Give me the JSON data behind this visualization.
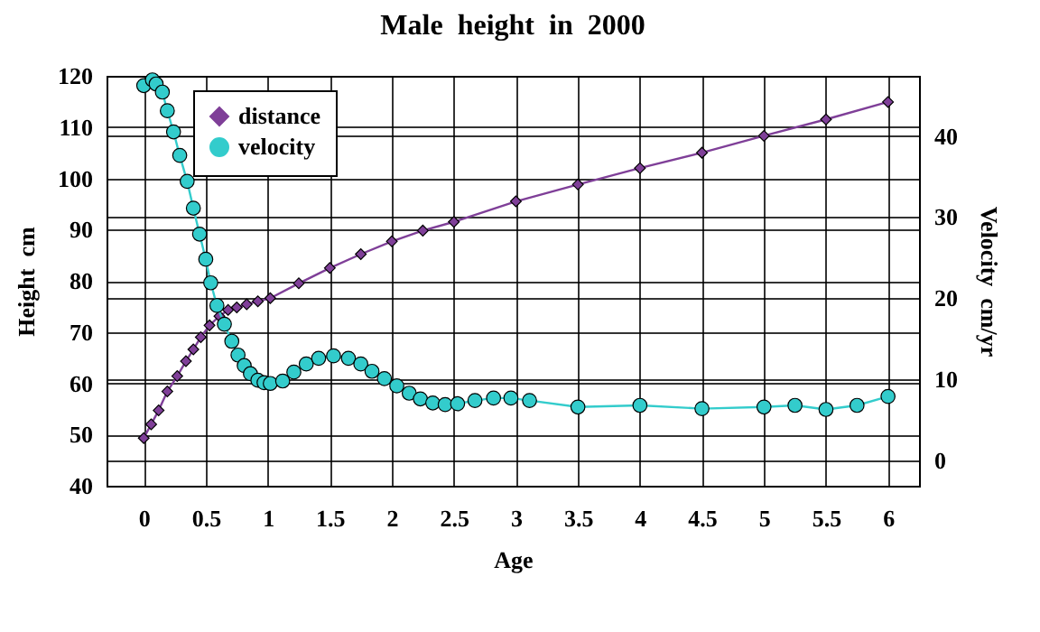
{
  "chart_data": {
    "type": "line",
    "title": "Male  height  in  2000",
    "xlabel": "Age",
    "ylabel": "Height  cm",
    "y2label": "Velocity  cm/yr",
    "xlim": [
      -0.3,
      6.25
    ],
    "xticks": [
      0,
      0.5,
      1,
      1.5,
      2,
      2.5,
      3,
      3.5,
      4,
      4.5,
      5,
      5.5,
      6
    ],
    "ylim": [
      40,
      120
    ],
    "yticks": [
      40,
      50,
      60,
      70,
      80,
      90,
      100,
      110,
      120
    ],
    "y2lim": [
      -3.1,
      47.4
    ],
    "y2ticks": [
      0,
      10,
      20,
      30,
      40
    ],
    "grid": true,
    "legend": "top left",
    "series": [
      {
        "name": "distance",
        "color": "#7f3f98",
        "marker": "diamond",
        "x": [
          0,
          0.06,
          0.12,
          0.19,
          0.27,
          0.34,
          0.4,
          0.46,
          0.53,
          0.61,
          0.68,
          0.75,
          0.83,
          0.92,
          1.02,
          1.25,
          1.5,
          1.75,
          2,
          2.25,
          2.5,
          3,
          3.5,
          4,
          4.5,
          5,
          5.5,
          6
        ],
        "values": [
          49.3,
          52.0,
          54.7,
          58.4,
          61.4,
          64.3,
          66.6,
          69.0,
          71.3,
          73.1,
          74.3,
          74.8,
          75.4,
          76.0,
          76.6,
          79.5,
          82.5,
          85.2,
          87.7,
          89.8,
          91.5,
          95.5,
          98.8,
          102,
          105,
          108.3,
          111.5,
          114.9
        ]
      },
      {
        "name": "velocity",
        "color": "#33cccc",
        "marker": "circle",
        "axis": "y2",
        "x": [
          0,
          0.07,
          0.1,
          0.15,
          0.19,
          0.24,
          0.29,
          0.35,
          0.4,
          0.45,
          0.5,
          0.54,
          0.59,
          0.65,
          0.71,
          0.76,
          0.81,
          0.86,
          0.92,
          0.97,
          1.02,
          1.12,
          1.21,
          1.31,
          1.41,
          1.53,
          1.65,
          1.75,
          1.84,
          1.94,
          2.04,
          2.14,
          2.23,
          2.33,
          2.43,
          2.53,
          2.67,
          2.82,
          2.96,
          3.11,
          3.5,
          4,
          4.5,
          5,
          5.25,
          5.5,
          5.75,
          6
        ],
        "values": [
          46.2,
          46.9,
          46.4,
          45.4,
          43.1,
          40.5,
          37.6,
          34.4,
          31.1,
          27.9,
          24.8,
          21.9,
          19.1,
          16.8,
          14.7,
          13.0,
          11.7,
          10.7,
          9.9,
          9.6,
          9.5,
          9.8,
          10.9,
          11.9,
          12.6,
          12.9,
          12.6,
          11.9,
          11.0,
          10.1,
          9.2,
          8.3,
          7.6,
          7.1,
          6.9,
          7.0,
          7.4,
          7.7,
          7.7,
          7.4,
          6.6,
          6.8,
          6.4,
          6.6,
          6.8,
          6.3,
          6.8,
          7.9
        ]
      }
    ]
  }
}
